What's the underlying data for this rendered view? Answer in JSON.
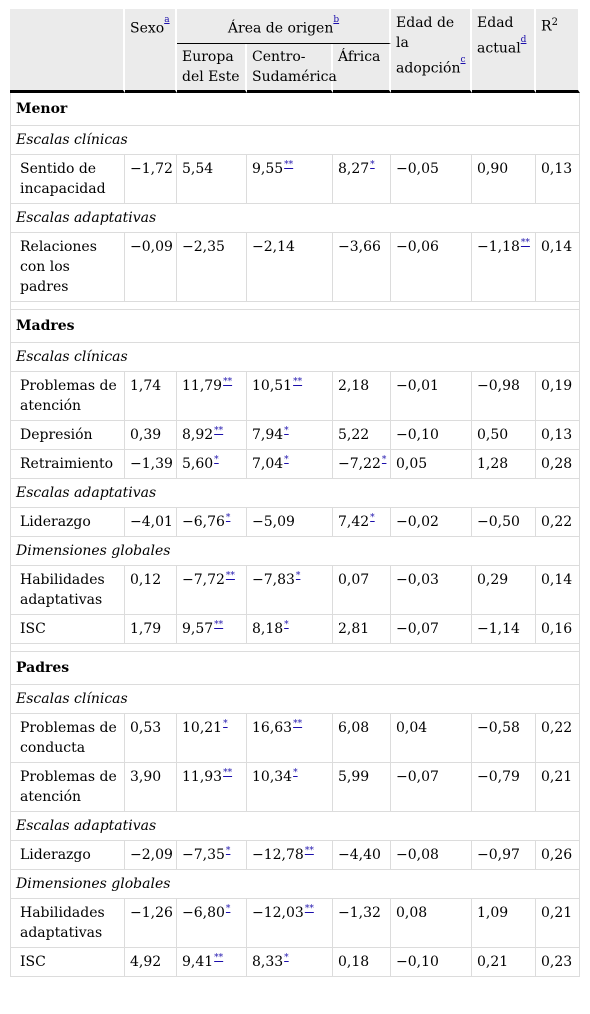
{
  "header": {
    "sexo": "Sexo",
    "sexo_note": "a",
    "area": "Área de origen",
    "area_note": "b",
    "edad_adop": "Edad de la adopción",
    "edad_adop_note": "c",
    "edad_actual": "Edad actual",
    "edad_actual_note": "d",
    "r2": "R",
    "r2_sup": "2",
    "sub_europa": "Europa del Este",
    "sub_centro": "Centro-Sudamérica",
    "sub_africa": "África"
  },
  "sections": [
    {
      "title": "Menor",
      "groups": [
        {
          "label": "Escalas clínicas",
          "rows": [
            {
              "name": "Sentido de incapacidad",
              "cells": [
                [
                  "−1,72",
                  ""
                ],
                [
                  "5,54",
                  ""
                ],
                [
                  "9,55",
                  "**"
                ],
                [
                  "8,27",
                  "*"
                ],
                [
                  "−0,05",
                  ""
                ],
                [
                  "0,90",
                  ""
                ],
                [
                  "0,13",
                  ""
                ]
              ]
            }
          ]
        },
        {
          "label": "Escalas adaptativas",
          "rows": [
            {
              "name": "Relaciones con los padres",
              "cells": [
                [
                  "−0,09",
                  ""
                ],
                [
                  "−2,35",
                  ""
                ],
                [
                  "−2,14",
                  ""
                ],
                [
                  "−3,66",
                  ""
                ],
                [
                  "−0,06",
                  ""
                ],
                [
                  "−1,18",
                  "**"
                ],
                [
                  "0,14",
                  ""
                ]
              ]
            }
          ]
        }
      ]
    },
    {
      "title": "Madres",
      "groups": [
        {
          "label": "Escalas clínicas",
          "rows": [
            {
              "name": "Problemas de atención",
              "cells": [
                [
                  "1,74",
                  ""
                ],
                [
                  "11,79",
                  "**"
                ],
                [
                  "10,51",
                  "**"
                ],
                [
                  "2,18",
                  ""
                ],
                [
                  "−0,01",
                  ""
                ],
                [
                  "−0,98",
                  ""
                ],
                [
                  "0,19",
                  ""
                ]
              ]
            },
            {
              "name": "Depresión",
              "cells": [
                [
                  "0,39",
                  ""
                ],
                [
                  "8,92",
                  "**"
                ],
                [
                  "7,94",
                  "*"
                ],
                [
                  "5,22",
                  ""
                ],
                [
                  "−0,10",
                  ""
                ],
                [
                  "0,50",
                  ""
                ],
                [
                  "0,13",
                  ""
                ]
              ]
            },
            {
              "name": "Retraimiento",
              "cells": [
                [
                  "−1,39",
                  ""
                ],
                [
                  "5,60",
                  "*"
                ],
                [
                  "7,04",
                  "*"
                ],
                [
                  "−7,22",
                  "*"
                ],
                [
                  "0,05",
                  ""
                ],
                [
                  "1,28",
                  ""
                ],
                [
                  "0,28",
                  ""
                ]
              ]
            }
          ]
        },
        {
          "label": "Escalas adaptativas",
          "rows": [
            {
              "name": "Liderazgo",
              "cells": [
                [
                  "−4,01",
                  ""
                ],
                [
                  "−6,76",
                  "*"
                ],
                [
                  "−5,09",
                  ""
                ],
                [
                  "7,42",
                  "*"
                ],
                [
                  "−0,02",
                  ""
                ],
                [
                  "−0,50",
                  ""
                ],
                [
                  "0,22",
                  ""
                ]
              ]
            }
          ]
        },
        {
          "label": "Dimensiones globales",
          "rows": [
            {
              "name": "Habilidades adaptativas",
              "cells": [
                [
                  "0,12",
                  ""
                ],
                [
                  "−7,72",
                  "**"
                ],
                [
                  "−7,83",
                  "*"
                ],
                [
                  "0,07",
                  ""
                ],
                [
                  "−0,03",
                  ""
                ],
                [
                  "0,29",
                  ""
                ],
                [
                  "0,14",
                  ""
                ]
              ]
            },
            {
              "name": "ISC",
              "cells": [
                [
                  "1,79",
                  ""
                ],
                [
                  "9,57",
                  "**"
                ],
                [
                  "8,18",
                  "*"
                ],
                [
                  "2,81",
                  ""
                ],
                [
                  "−0,07",
                  ""
                ],
                [
                  "−1,14",
                  ""
                ],
                [
                  "0,16",
                  ""
                ]
              ]
            }
          ]
        }
      ]
    },
    {
      "title": "Padres",
      "groups": [
        {
          "label": "Escalas clínicas",
          "rows": [
            {
              "name": "Problemas de conducta",
              "cells": [
                [
                  "0,53",
                  ""
                ],
                [
                  "10,21",
                  "*"
                ],
                [
                  "16,63",
                  "**"
                ],
                [
                  "6,08",
                  ""
                ],
                [
                  "0,04",
                  ""
                ],
                [
                  "−0,58",
                  ""
                ],
                [
                  "0,22",
                  ""
                ]
              ]
            },
            {
              "name": "Problemas de atención",
              "cells": [
                [
                  "3,90",
                  ""
                ],
                [
                  "11,93",
                  "**"
                ],
                [
                  "10,34",
                  "*"
                ],
                [
                  "5,99",
                  ""
                ],
                [
                  "−0,07",
                  ""
                ],
                [
                  "−0,79",
                  ""
                ],
                [
                  "0,21",
                  ""
                ]
              ]
            }
          ]
        },
        {
          "label": "Escalas adaptativas",
          "rows": [
            {
              "name": "Liderazgo",
              "cells": [
                [
                  "−2,09",
                  ""
                ],
                [
                  "−7,35",
                  "*"
                ],
                [
                  "−12,78",
                  "**"
                ],
                [
                  "−4,40",
                  ""
                ],
                [
                  "−0,08",
                  ""
                ],
                [
                  "−0,97",
                  ""
                ],
                [
                  "0,26",
                  ""
                ]
              ]
            }
          ]
        },
        {
          "label": "Dimensiones globales",
          "rows": [
            {
              "name": "Habilidades adaptativas",
              "cells": [
                [
                  "−1,26",
                  ""
                ],
                [
                  "−6,80",
                  "*"
                ],
                [
                  "−12,03",
                  "**"
                ],
                [
                  "−1,32",
                  ""
                ],
                [
                  "0,08",
                  ""
                ],
                [
                  "1,09",
                  ""
                ],
                [
                  "0,21",
                  ""
                ]
              ]
            },
            {
              "name": "ISC",
              "cells": [
                [
                  "4,92",
                  ""
                ],
                [
                  "9,41",
                  "**"
                ],
                [
                  "8,33",
                  "*"
                ],
                [
                  "0,18",
                  ""
                ],
                [
                  "−0,10",
                  ""
                ],
                [
                  "0,21",
                  ""
                ],
                [
                  "0,23",
                  ""
                ]
              ]
            }
          ]
        }
      ]
    }
  ]
}
